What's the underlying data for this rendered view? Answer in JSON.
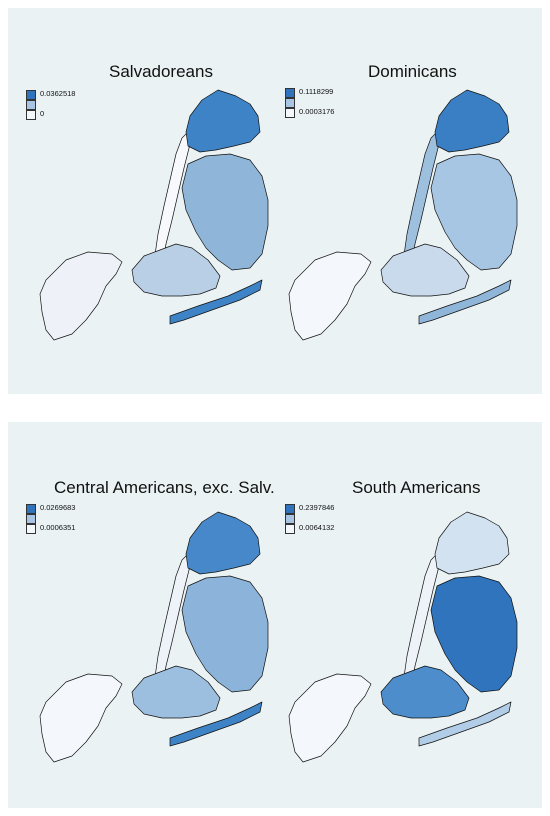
{
  "maps": [
    {
      "title": "Salvadoreans",
      "legend": [
        "0.0362518",
        "",
        "0"
      ],
      "colors": {
        "si": "#eef2f8",
        "bx": "#3f83c7",
        "mn": "#f7f9fc",
        "bk": "#b9cfe5",
        "qn": "#8fb5d9",
        "rk": "#3f83c7"
      }
    },
    {
      "title": "Dominicans",
      "legend": [
        "0.1118299",
        "",
        "0.0003176"
      ],
      "colors": {
        "si": "#f4f7fb",
        "bx": "#3a7fc4",
        "mn": "#9ec0df",
        "bk": "#c8daec",
        "qn": "#a7c6e3",
        "rk": "#8fb5d9"
      }
    },
    {
      "title": "Central Americans, exc. Salv.",
      "legend": [
        "0.0269683",
        "",
        "0.0006351"
      ],
      "colors": {
        "si": "#f4f7fb",
        "bx": "#4688c9",
        "mn": "#eef3f9",
        "bk": "#9cbfe0",
        "qn": "#8cb4da",
        "rk": "#3f83c7"
      }
    },
    {
      "title": "South Americans",
      "legend": [
        "0.2397846",
        "",
        "0.0064132"
      ],
      "colors": {
        "si": "#f4f7fb",
        "bx": "#d2e2f1",
        "mn": "#eef3f9",
        "bk": "#4d8dcb",
        "qn": "#2f74bd",
        "rk": "#b2cde7"
      }
    }
  ],
  "legend_colors": [
    "#2e73bc",
    "#a8c6e3",
    "#f4f7fb"
  ]
}
